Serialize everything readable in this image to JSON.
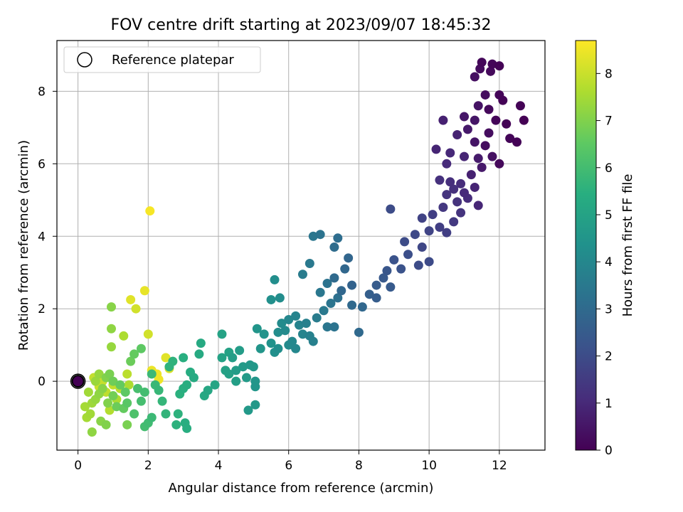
{
  "chart_data": {
    "type": "scatter",
    "title": "FOV centre drift starting at 2023/09/07 18:45:32",
    "xlabel": "Angular distance from reference (arcmin)",
    "ylabel": "Rotation from reference (arcmin)",
    "xlim": [
      -0.6,
      13.3
    ],
    "ylim": [
      -1.9,
      9.4
    ],
    "xticks": [
      "0",
      "2",
      "4",
      "6",
      "8",
      "10",
      "12"
    ],
    "yticks": [
      "0",
      "2",
      "4",
      "6",
      "8"
    ],
    "grid": true,
    "legend": {
      "position": "top-left",
      "entries": [
        "Reference platepar"
      ]
    },
    "colorbar": {
      "label": "Hours from first FF file",
      "range": [
        0,
        8.7
      ],
      "ticks": [
        "0",
        "1",
        "2",
        "3",
        "4",
        "5",
        "6",
        "7",
        "8"
      ],
      "colormap": "viridis"
    },
    "reference_point": {
      "x": 0,
      "y": 0
    },
    "points": [
      [
        11.5,
        8.8,
        0.15
      ],
      [
        11.8,
        8.75,
        0.1
      ],
      [
        12.0,
        8.7,
        0.05
      ],
      [
        11.45,
        8.62,
        0.25
      ],
      [
        11.75,
        8.55,
        0.2
      ],
      [
        11.3,
        8.4,
        0.35
      ],
      [
        12.0,
        7.9,
        0.1
      ],
      [
        11.6,
        7.9,
        0.3
      ],
      [
        12.1,
        7.75,
        0.05
      ],
      [
        12.6,
        7.6,
        0.05
      ],
      [
        11.7,
        7.5,
        0.2
      ],
      [
        11.4,
        7.6,
        0.45
      ],
      [
        11.0,
        7.3,
        0.55
      ],
      [
        11.3,
        7.2,
        0.5
      ],
      [
        10.4,
        7.2,
        0.8
      ],
      [
        11.9,
        7.2,
        0.1
      ],
      [
        12.2,
        7.1,
        0.05
      ],
      [
        12.7,
        7.2,
        0.0
      ],
      [
        11.1,
        6.95,
        0.6
      ],
      [
        11.7,
        6.85,
        0.3
      ],
      [
        12.3,
        6.7,
        0.1
      ],
      [
        12.5,
        6.6,
        0.05
      ],
      [
        10.8,
        6.8,
        0.85
      ],
      [
        11.3,
        6.6,
        0.5
      ],
      [
        10.2,
        6.4,
        0.9
      ],
      [
        10.6,
        6.3,
        1.0
      ],
      [
        11.0,
        6.2,
        0.9
      ],
      [
        11.4,
        6.15,
        0.65
      ],
      [
        11.6,
        6.5,
        0.3
      ],
      [
        12.0,
        6.0,
        0.2
      ],
      [
        11.8,
        6.2,
        0.4
      ],
      [
        10.5,
        6.0,
        1.05
      ],
      [
        11.5,
        5.9,
        0.6
      ],
      [
        11.2,
        5.7,
        0.8
      ],
      [
        10.3,
        5.55,
        1.2
      ],
      [
        10.6,
        5.5,
        1.15
      ],
      [
        10.9,
        5.45,
        1.1
      ],
      [
        11.3,
        5.35,
        0.9
      ],
      [
        10.7,
        5.3,
        1.2
      ],
      [
        11.0,
        5.2,
        1.05
      ],
      [
        10.5,
        5.15,
        1.3
      ],
      [
        11.1,
        5.05,
        1.1
      ],
      [
        10.8,
        4.95,
        1.25
      ],
      [
        10.4,
        4.8,
        1.4
      ],
      [
        11.4,
        4.85,
        0.95
      ],
      [
        10.9,
        4.65,
        1.3
      ],
      [
        10.1,
        4.6,
        1.6
      ],
      [
        9.8,
        4.5,
        1.7
      ],
      [
        10.7,
        4.4,
        1.45
      ],
      [
        10.3,
        4.25,
        1.6
      ],
      [
        10.0,
        4.15,
        1.75
      ],
      [
        10.5,
        4.1,
        1.6
      ],
      [
        9.6,
        4.05,
        1.9
      ],
      [
        9.3,
        3.85,
        2.0
      ],
      [
        9.8,
        3.7,
        1.85
      ],
      [
        8.9,
        4.75,
        2.0
      ],
      [
        9.4,
        3.5,
        2.1
      ],
      [
        9.0,
        3.35,
        2.2
      ],
      [
        9.7,
        3.2,
        2.0
      ],
      [
        10.0,
        3.3,
        1.95
      ],
      [
        8.8,
        3.05,
        2.3
      ],
      [
        9.2,
        3.1,
        2.2
      ],
      [
        8.7,
        2.85,
        2.4
      ],
      [
        8.9,
        2.6,
        2.45
      ],
      [
        8.5,
        2.65,
        2.5
      ],
      [
        8.3,
        2.4,
        2.6
      ],
      [
        8.5,
        2.3,
        2.55
      ],
      [
        7.8,
        2.65,
        2.75
      ],
      [
        7.5,
        2.5,
        2.9
      ],
      [
        7.3,
        2.85,
        3.0
      ],
      [
        7.6,
        3.1,
        2.9
      ],
      [
        7.7,
        3.4,
        2.85
      ],
      [
        7.3,
        3.7,
        3.05
      ],
      [
        7.4,
        3.95,
        3.1
      ],
      [
        6.9,
        4.05,
        3.3
      ],
      [
        6.7,
        4.0,
        3.4
      ],
      [
        6.6,
        3.25,
        3.5
      ],
      [
        6.4,
        2.95,
        3.6
      ],
      [
        7.1,
        2.7,
        3.3
      ],
      [
        6.9,
        2.45,
        3.45
      ],
      [
        7.2,
        2.15,
        3.35
      ],
      [
        7.0,
        1.95,
        3.5
      ],
      [
        7.4,
        2.3,
        3.2
      ],
      [
        7.8,
        2.1,
        2.95
      ],
      [
        8.1,
        2.05,
        2.9
      ],
      [
        8.0,
        1.35,
        2.95
      ],
      [
        7.1,
        1.5,
        3.4
      ],
      [
        7.3,
        1.5,
        3.3
      ],
      [
        6.8,
        1.75,
        3.6
      ],
      [
        6.5,
        1.6,
        3.75
      ],
      [
        6.2,
        1.8,
        3.9
      ],
      [
        6.3,
        1.55,
        3.85
      ],
      [
        6.0,
        1.7,
        4.0
      ],
      [
        6.6,
        1.25,
        3.8
      ],
      [
        6.7,
        1.1,
        3.75
      ],
      [
        6.4,
        1.3,
        3.9
      ],
      [
        6.1,
        1.1,
        4.05
      ],
      [
        5.9,
        1.4,
        4.1
      ],
      [
        5.8,
        1.6,
        4.15
      ],
      [
        5.7,
        1.35,
        4.2
      ],
      [
        6.0,
        1.0,
        4.1
      ],
      [
        5.7,
        0.9,
        4.25
      ],
      [
        6.2,
        0.9,
        4.0
      ],
      [
        5.5,
        2.25,
        4.3
      ],
      [
        5.75,
        2.3,
        4.2
      ],
      [
        5.6,
        2.8,
        4.25
      ],
      [
        5.3,
        1.3,
        4.45
      ],
      [
        5.1,
        1.45,
        4.5
      ],
      [
        5.5,
        1.05,
        4.4
      ],
      [
        5.2,
        0.9,
        4.5
      ],
      [
        5.6,
        0.8,
        4.3
      ],
      [
        4.9,
        0.45,
        4.6
      ],
      [
        4.7,
        0.4,
        4.7
      ],
      [
        4.5,
        0.3,
        4.75
      ],
      [
        4.4,
        0.65,
        4.8
      ],
      [
        4.6,
        0.85,
        4.75
      ],
      [
        4.3,
        0.2,
        4.9
      ],
      [
        4.2,
        0.3,
        4.95
      ],
      [
        4.5,
        0.0,
        4.85
      ],
      [
        4.8,
        0.1,
        4.7
      ],
      [
        4.1,
        1.3,
        5.0
      ],
      [
        4.3,
        0.8,
        4.95
      ],
      [
        4.1,
        0.65,
        5.0
      ],
      [
        5.0,
        0.4,
        4.6
      ],
      [
        5.05,
        0.0,
        4.55
      ],
      [
        5.05,
        -0.15,
        4.55
      ],
      [
        4.85,
        -0.8,
        4.65
      ],
      [
        5.05,
        -0.65,
        4.6
      ],
      [
        3.9,
        -0.1,
        5.05
      ],
      [
        3.7,
        -0.25,
        5.15
      ],
      [
        3.6,
        -0.4,
        5.2
      ],
      [
        3.45,
        0.75,
        5.25
      ],
      [
        3.5,
        1.05,
        5.25
      ],
      [
        3.2,
        0.25,
        5.35
      ],
      [
        3.3,
        0.1,
        5.3
      ],
      [
        3.1,
        -0.1,
        5.4
      ],
      [
        3.0,
        -0.2,
        5.45
      ],
      [
        2.9,
        -0.35,
        5.5
      ],
      [
        3.0,
        0.65,
        5.45
      ],
      [
        3.1,
        -1.3,
        5.4
      ],
      [
        3.05,
        -1.15,
        5.4
      ],
      [
        2.8,
        -1.2,
        5.55
      ],
      [
        2.85,
        -0.9,
        5.55
      ],
      [
        2.5,
        -0.9,
        5.65
      ],
      [
        2.4,
        -0.55,
        5.7
      ],
      [
        2.3,
        -0.25,
        5.75
      ],
      [
        2.2,
        -0.1,
        5.8
      ],
      [
        2.1,
        0.2,
        5.85
      ],
      [
        2.6,
        0.4,
        5.6
      ],
      [
        2.7,
        0.55,
        5.6
      ],
      [
        2.1,
        -1.0,
        5.85
      ],
      [
        1.9,
        -1.25,
        6.0
      ],
      [
        2.0,
        -1.15,
        5.95
      ],
      [
        1.8,
        -0.55,
        6.05
      ],
      [
        1.9,
        -0.3,
        6.0
      ],
      [
        1.7,
        -0.2,
        6.1
      ],
      [
        1.8,
        0.9,
        6.5
      ],
      [
        1.6,
        0.75,
        6.6
      ],
      [
        1.5,
        0.55,
        6.7
      ],
      [
        1.6,
        -0.9,
        6.2
      ],
      [
        1.4,
        -0.6,
        6.4
      ],
      [
        1.35,
        -0.3,
        6.5
      ],
      [
        1.2,
        -0.1,
        6.6
      ],
      [
        1.0,
        0.0,
        6.75
      ],
      [
        0.9,
        0.2,
        6.9
      ],
      [
        0.8,
        0.1,
        7.0
      ],
      [
        0.7,
        -0.2,
        7.1
      ],
      [
        0.6,
        -0.35,
        7.2
      ],
      [
        0.5,
        -0.5,
        7.3
      ],
      [
        0.4,
        -0.6,
        7.4
      ],
      [
        0.35,
        -0.9,
        7.45
      ],
      [
        0.25,
        -1.0,
        7.5
      ],
      [
        0.4,
        -1.4,
        7.2
      ],
      [
        0.65,
        -1.1,
        7.1
      ],
      [
        0.8,
        -1.2,
        7.0
      ],
      [
        1.4,
        -1.2,
        6.9
      ],
      [
        0.3,
        -0.3,
        7.45
      ],
      [
        0.5,
        0.0,
        7.35
      ],
      [
        0.6,
        0.2,
        7.3
      ],
      [
        0.85,
        -0.6,
        7.0
      ],
      [
        1.0,
        -0.4,
        6.8
      ],
      [
        1.1,
        -0.7,
        6.7
      ],
      [
        1.3,
        -0.75,
        6.6
      ],
      [
        0.2,
        -0.7,
        7.5
      ],
      [
        0.95,
        2.05,
        7.1
      ],
      [
        0.95,
        1.45,
        7.2
      ],
      [
        0.95,
        0.95,
        7.3
      ],
      [
        1.3,
        1.25,
        7.6
      ],
      [
        1.5,
        2.25,
        8.3
      ],
      [
        1.65,
        2.0,
        8.1
      ],
      [
        1.9,
        2.5,
        8.4
      ],
      [
        2.0,
        1.3,
        8.1
      ],
      [
        2.05,
        4.7,
        8.6
      ],
      [
        2.5,
        0.65,
        8.3
      ],
      [
        2.6,
        0.35,
        8.2
      ],
      [
        2.25,
        0.2,
        8.5
      ],
      [
        2.1,
        0.3,
        8.45
      ],
      [
        2.3,
        0.05,
        8.5
      ],
      [
        1.2,
        -0.2,
        7.8
      ],
      [
        1.4,
        0.2,
        7.8
      ],
      [
        1.45,
        -0.1,
        7.6
      ],
      [
        1.0,
        -0.1,
        7.9
      ],
      [
        0.8,
        -0.3,
        7.85
      ],
      [
        0.7,
        0.0,
        7.95
      ],
      [
        0.6,
        -0.15,
        8.0
      ],
      [
        0.45,
        0.1,
        7.9
      ],
      [
        0.9,
        -0.8,
        7.7
      ],
      [
        1.1,
        -0.5,
        7.6
      ]
    ]
  }
}
